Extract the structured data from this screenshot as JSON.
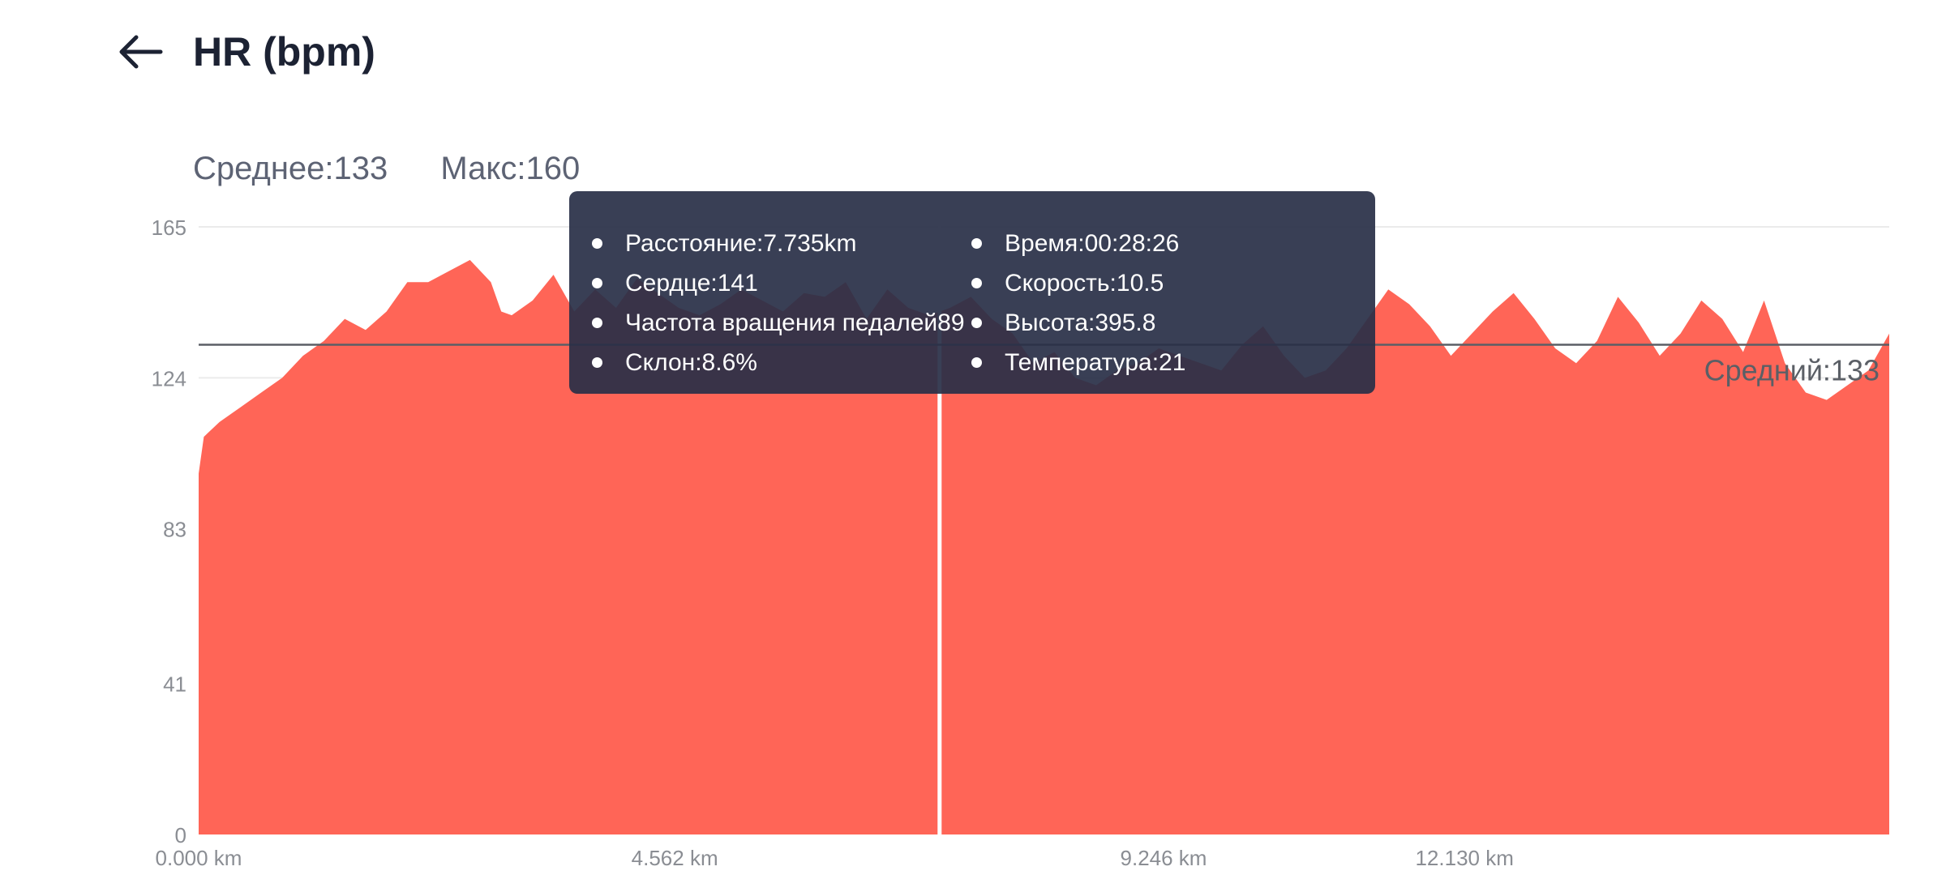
{
  "header": {
    "title": "HR (bpm)"
  },
  "summary": {
    "average_label": "Среднее:133",
    "max_label": "Макс:160"
  },
  "tooltip": {
    "left_items": [
      "Расстояние:7.735km",
      "Сердце:141",
      "Частота вращения педалей89",
      "Склон:8.6%"
    ],
    "right_items": [
      "Время:00:28:26",
      "Скорость:10.5",
      "Высота:395.8",
      "Температура:21"
    ]
  },
  "colors": {
    "area": "#ff6557",
    "average_line": "#5b5f66",
    "cursor": "#ffffff",
    "tooltip_bg": "#282f47",
    "grid": "#ebebeb",
    "tick": "#8a8d93"
  },
  "chart_data": {
    "type": "area",
    "xlabel": "",
    "ylabel": "",
    "ylim": [
      0,
      165
    ],
    "xlim": [
      0,
      16.2
    ],
    "y_ticks": [
      0,
      41,
      83,
      124,
      165
    ],
    "x_ticks": [
      {
        "value": 0.0,
        "label": "0.000 km"
      },
      {
        "value": 4.562,
        "label": "4.562 km"
      },
      {
        "value": 9.246,
        "label": "9.246 km"
      },
      {
        "value": 12.13,
        "label": "12.130 km"
      }
    ],
    "average": {
      "value": 133,
      "label": "Средний:133"
    },
    "cursor_x": 7.1,
    "series": [
      {
        "x": [
          0.0,
          0.05,
          0.2,
          0.4,
          0.6,
          0.8,
          1.0,
          1.2,
          1.4,
          1.6,
          1.8,
          2.0,
          2.2,
          2.4,
          2.6,
          2.8,
          2.9,
          3.0,
          3.2,
          3.4,
          3.6,
          3.8,
          4.0,
          4.2,
          4.4,
          4.6,
          4.8,
          5.0,
          5.2,
          5.4,
          5.6,
          5.8,
          6.0,
          6.2,
          6.4,
          6.6,
          6.8,
          7.0,
          7.2,
          7.4,
          7.6,
          7.8,
          8.0,
          8.2,
          8.4,
          8.6,
          8.8,
          9.0,
          9.2,
          9.4,
          9.6,
          9.8,
          10.0,
          10.2,
          10.4,
          10.6,
          10.8,
          11.0,
          11.2,
          11.4,
          11.6,
          11.8,
          12.0,
          12.2,
          12.4,
          12.6,
          12.8,
          13.0,
          13.2,
          13.4,
          13.6,
          13.8,
          14.0,
          14.2,
          14.4,
          14.6,
          14.8,
          15.0,
          15.2,
          15.4,
          15.6,
          15.8,
          16.0,
          16.2
        ],
        "y": [
          98,
          108,
          112,
          116,
          120,
          124,
          130,
          134,
          140,
          137,
          142,
          150,
          150,
          153,
          156,
          150,
          142,
          141,
          145,
          152,
          142,
          148,
          143,
          151,
          147,
          143,
          141,
          144,
          148,
          145,
          142,
          147,
          146,
          150,
          140,
          148,
          143,
          141,
          143,
          146,
          140,
          136,
          128,
          131,
          124,
          122,
          126,
          128,
          132,
          130,
          128,
          126,
          133,
          138,
          130,
          124,
          126,
          132,
          140,
          148,
          144,
          138,
          130,
          136,
          142,
          147,
          140,
          132,
          128,
          134,
          146,
          139,
          130,
          136,
          145,
          140,
          131,
          145,
          128,
          120,
          118,
          122,
          126,
          136
        ]
      }
    ]
  }
}
